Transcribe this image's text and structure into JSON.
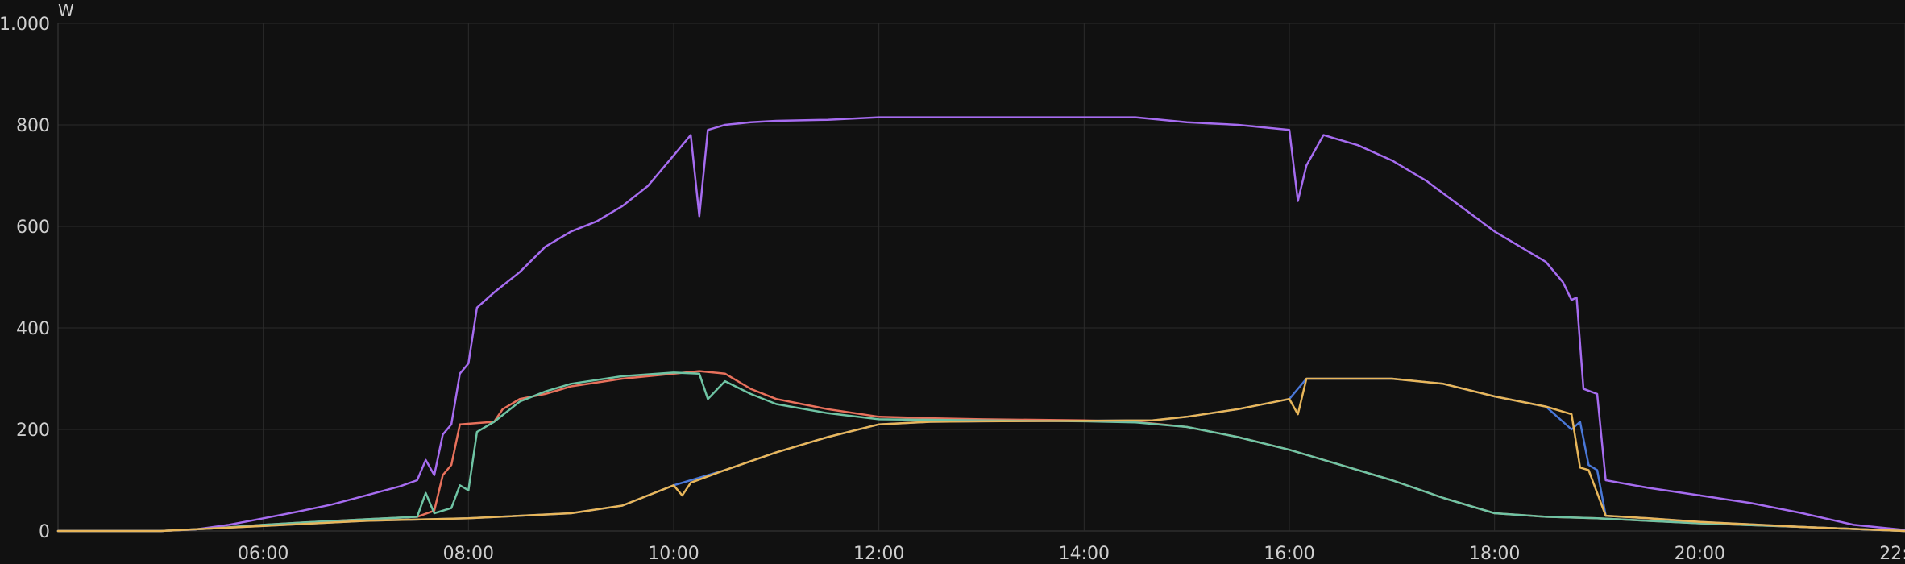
{
  "chart_data": {
    "type": "line",
    "ylabel": "W",
    "ylim": [
      0,
      1000
    ],
    "xlim": [
      "04:00",
      "22:00"
    ],
    "y_ticks": [
      {
        "value": 0,
        "label": "0"
      },
      {
        "value": 200,
        "label": "200"
      },
      {
        "value": 400,
        "label": "400"
      },
      {
        "value": 600,
        "label": "600"
      },
      {
        "value": 800,
        "label": "800"
      },
      {
        "value": 1000,
        "label": "1.000"
      }
    ],
    "x_ticks": [
      "06:00",
      "08:00",
      "10:00",
      "12:00",
      "14:00",
      "16:00",
      "18:00",
      "20:00",
      "22:00"
    ],
    "grid": true,
    "series": [
      {
        "color": "#a66cf0",
        "points": [
          [
            "04:00",
            0
          ],
          [
            "05:00",
            0
          ],
          [
            "05:20",
            3
          ],
          [
            "05:40",
            12
          ],
          [
            "06:00",
            25
          ],
          [
            "06:20",
            38
          ],
          [
            "06:40",
            52
          ],
          [
            "07:00",
            70
          ],
          [
            "07:20",
            88
          ],
          [
            "07:30",
            100
          ],
          [
            "07:35",
            140
          ],
          [
            "07:40",
            110
          ],
          [
            "07:45",
            190
          ],
          [
            "07:50",
            210
          ],
          [
            "07:55",
            310
          ],
          [
            "08:00",
            330
          ],
          [
            "08:05",
            440
          ],
          [
            "08:15",
            470
          ],
          [
            "08:30",
            510
          ],
          [
            "08:45",
            560
          ],
          [
            "09:00",
            590
          ],
          [
            "09:15",
            610
          ],
          [
            "09:30",
            640
          ],
          [
            "09:45",
            680
          ],
          [
            "10:00",
            740
          ],
          [
            "10:10",
            780
          ],
          [
            "10:15",
            620
          ],
          [
            "10:20",
            790
          ],
          [
            "10:30",
            800
          ],
          [
            "10:45",
            805
          ],
          [
            "11:00",
            808
          ],
          [
            "11:30",
            810
          ],
          [
            "12:00",
            815
          ],
          [
            "13:00",
            815
          ],
          [
            "14:00",
            815
          ],
          [
            "14:30",
            815
          ],
          [
            "15:00",
            805
          ],
          [
            "15:30",
            800
          ],
          [
            "16:00",
            790
          ],
          [
            "16:05",
            650
          ],
          [
            "16:10",
            720
          ],
          [
            "16:20",
            780
          ],
          [
            "16:40",
            760
          ],
          [
            "17:00",
            730
          ],
          [
            "17:20",
            690
          ],
          [
            "17:40",
            640
          ],
          [
            "18:00",
            590
          ],
          [
            "18:15",
            560
          ],
          [
            "18:30",
            530
          ],
          [
            "18:40",
            490
          ],
          [
            "18:45",
            455
          ],
          [
            "18:48",
            460
          ],
          [
            "18:52",
            280
          ],
          [
            "19:00",
            270
          ],
          [
            "19:05",
            100
          ],
          [
            "19:30",
            85
          ],
          [
            "20:00",
            70
          ],
          [
            "20:30",
            55
          ],
          [
            "21:00",
            35
          ],
          [
            "21:30",
            12
          ],
          [
            "22:00",
            2
          ]
        ]
      },
      {
        "color": "#e8715c",
        "points": [
          [
            "04:00",
            0
          ],
          [
            "05:00",
            0
          ],
          [
            "05:30",
            5
          ],
          [
            "06:00",
            12
          ],
          [
            "06:30",
            18
          ],
          [
            "07:00",
            23
          ],
          [
            "07:30",
            28
          ],
          [
            "07:40",
            40
          ],
          [
            "07:45",
            110
          ],
          [
            "07:50",
            130
          ],
          [
            "07:55",
            210
          ],
          [
            "08:15",
            215
          ],
          [
            "08:20",
            240
          ],
          [
            "08:30",
            260
          ],
          [
            "08:45",
            270
          ],
          [
            "09:00",
            285
          ],
          [
            "09:30",
            300
          ],
          [
            "10:00",
            310
          ],
          [
            "10:15",
            315
          ],
          [
            "10:30",
            310
          ],
          [
            "10:45",
            280
          ],
          [
            "11:00",
            260
          ],
          [
            "11:30",
            240
          ],
          [
            "12:00",
            225
          ],
          [
            "12:30",
            222
          ],
          [
            "13:00",
            220
          ],
          [
            "14:00",
            218
          ],
          [
            "14:30",
            215
          ],
          [
            "15:00",
            205
          ],
          [
            "15:30",
            185
          ],
          [
            "16:00",
            160
          ],
          [
            "16:30",
            130
          ],
          [
            "17:00",
            100
          ],
          [
            "17:30",
            65
          ],
          [
            "18:00",
            35
          ],
          [
            "18:30",
            28
          ],
          [
            "19:00",
            25
          ],
          [
            "20:00",
            15
          ],
          [
            "21:00",
            8
          ],
          [
            "22:00",
            0
          ]
        ]
      },
      {
        "color": "#6fc4a4",
        "points": [
          [
            "04:00",
            0
          ],
          [
            "05:00",
            0
          ],
          [
            "05:30",
            5
          ],
          [
            "06:00",
            12
          ],
          [
            "06:30",
            18
          ],
          [
            "07:00",
            23
          ],
          [
            "07:30",
            28
          ],
          [
            "07:35",
            75
          ],
          [
            "07:40",
            35
          ],
          [
            "07:50",
            45
          ],
          [
            "07:55",
            90
          ],
          [
            "08:00",
            80
          ],
          [
            "08:05",
            195
          ],
          [
            "08:15",
            215
          ],
          [
            "08:30",
            255
          ],
          [
            "08:45",
            275
          ],
          [
            "09:00",
            290
          ],
          [
            "09:30",
            305
          ],
          [
            "10:00",
            312
          ],
          [
            "10:15",
            310
          ],
          [
            "10:20",
            260
          ],
          [
            "10:30",
            295
          ],
          [
            "10:45",
            270
          ],
          [
            "11:00",
            250
          ],
          [
            "11:30",
            232
          ],
          [
            "12:00",
            220
          ],
          [
            "13:00",
            218
          ],
          [
            "14:00",
            216
          ],
          [
            "14:30",
            214
          ],
          [
            "15:00",
            205
          ],
          [
            "15:30",
            185
          ],
          [
            "16:00",
            160
          ],
          [
            "16:30",
            130
          ],
          [
            "17:00",
            100
          ],
          [
            "17:30",
            65
          ],
          [
            "18:00",
            35
          ],
          [
            "18:30",
            28
          ],
          [
            "19:00",
            25
          ],
          [
            "20:00",
            15
          ],
          [
            "21:00",
            8
          ],
          [
            "22:00",
            0
          ]
        ]
      },
      {
        "color": "#4a78d8",
        "points": [
          [
            "04:00",
            0
          ],
          [
            "05:00",
            0
          ],
          [
            "06:00",
            10
          ],
          [
            "07:00",
            20
          ],
          [
            "08:00",
            25
          ],
          [
            "09:00",
            35
          ],
          [
            "09:30",
            50
          ],
          [
            "10:00",
            90
          ],
          [
            "10:30",
            120
          ],
          [
            "11:00",
            155
          ],
          [
            "11:30",
            185
          ],
          [
            "12:00",
            210
          ],
          [
            "12:30",
            215
          ],
          [
            "13:00",
            216
          ],
          [
            "14:00",
            217
          ],
          [
            "14:40",
            218
          ],
          [
            "15:00",
            225
          ],
          [
            "15:30",
            240
          ],
          [
            "16:00",
            260
          ],
          [
            "16:10",
            300
          ],
          [
            "17:00",
            300
          ],
          [
            "17:30",
            290
          ],
          [
            "18:00",
            265
          ],
          [
            "18:30",
            245
          ],
          [
            "18:40",
            215
          ],
          [
            "18:45",
            200
          ],
          [
            "18:50",
            215
          ],
          [
            "18:55",
            130
          ],
          [
            "19:00",
            120
          ],
          [
            "19:05",
            30
          ],
          [
            "19:30",
            25
          ],
          [
            "20:00",
            18
          ],
          [
            "21:00",
            8
          ],
          [
            "22:00",
            0
          ]
        ]
      },
      {
        "color": "#e8b65a",
        "points": [
          [
            "04:00",
            0
          ],
          [
            "05:00",
            0
          ],
          [
            "06:00",
            10
          ],
          [
            "07:00",
            20
          ],
          [
            "08:00",
            25
          ],
          [
            "09:00",
            35
          ],
          [
            "09:30",
            50
          ],
          [
            "10:00",
            90
          ],
          [
            "10:05",
            70
          ],
          [
            "10:10",
            95
          ],
          [
            "10:30",
            120
          ],
          [
            "11:00",
            155
          ],
          [
            "11:30",
            185
          ],
          [
            "12:00",
            210
          ],
          [
            "12:30",
            215
          ],
          [
            "13:00",
            216
          ],
          [
            "14:00",
            217
          ],
          [
            "14:40",
            218
          ],
          [
            "15:00",
            225
          ],
          [
            "15:30",
            240
          ],
          [
            "16:00",
            260
          ],
          [
            "16:05",
            230
          ],
          [
            "16:10",
            300
          ],
          [
            "17:00",
            300
          ],
          [
            "17:30",
            290
          ],
          [
            "18:00",
            265
          ],
          [
            "18:30",
            245
          ],
          [
            "18:45",
            230
          ],
          [
            "18:50",
            125
          ],
          [
            "18:55",
            120
          ],
          [
            "19:05",
            30
          ],
          [
            "19:30",
            25
          ],
          [
            "20:00",
            18
          ],
          [
            "21:00",
            8
          ],
          [
            "22:00",
            0
          ]
        ]
      }
    ]
  }
}
